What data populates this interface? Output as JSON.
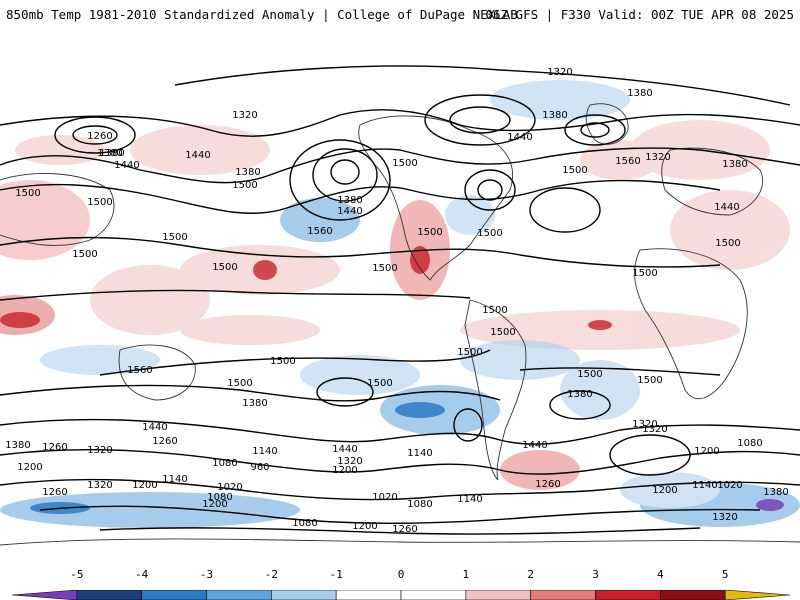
{
  "header": {
    "title": "850mb Temp 1981-2010 Standardized Anomaly | College of DuPage NEXLAB",
    "run_info": "06Z GFS | F330 Valid: 00Z TUE APR 08 2025"
  },
  "map": {
    "field": "850mb temperature standardized anomaly",
    "contour_field": "height contours",
    "contour_labels": [
      "1320",
      "1380",
      "1320",
      "1380",
      "1260",
      "1380",
      "1440",
      "1500",
      "1380",
      "1500",
      "1560",
      "1500",
      "1500",
      "1380",
      "1440",
      "1500",
      "1500",
      "1500",
      "1500",
      "1500",
      "1560",
      "1500",
      "1500",
      "1500",
      "1500",
      "1500",
      "1500",
      "1440",
      "1380",
      "1320",
      "1440",
      "1260",
      "1500",
      "1380",
      "1560",
      "1380",
      "1320",
      "1260",
      "1380",
      "1440",
      "1200",
      "1140",
      "1080",
      "960",
      "1140",
      "1200",
      "1320",
      "1440",
      "1200",
      "1260",
      "1320",
      "1080",
      "1140",
      "1200",
      "1020",
      "1080",
      "1140",
      "1020",
      "1080",
      "1200",
      "1260",
      "1320",
      "1200",
      "1140",
      "1020",
      "1260",
      "1320",
      "1200",
      "1440",
      "1320",
      "1380",
      "1080",
      "1500",
      "1500",
      "1500",
      "1500",
      "1500",
      "1440",
      "1380"
    ],
    "positive_color": "#d7303a",
    "negative_color": "#3d87c9"
  },
  "colorbar": {
    "ticks": [
      "-5",
      "-4",
      "-3",
      "-2",
      "-1",
      "0",
      "1",
      "2",
      "3",
      "4",
      "5"
    ],
    "bins": [
      {
        "from": -6,
        "to": -5,
        "color": "#7a3fb5"
      },
      {
        "from": -5,
        "to": -4,
        "color": "#1f3d7a"
      },
      {
        "from": -4,
        "to": -3,
        "color": "#2b7bc4"
      },
      {
        "from": -3,
        "to": -2,
        "color": "#5fa3db"
      },
      {
        "from": -2,
        "to": -1,
        "color": "#a9cdec"
      },
      {
        "from": -1,
        "to": 0,
        "color": "#ffffff"
      },
      {
        "from": 0,
        "to": 1,
        "color": "#ffffff"
      },
      {
        "from": 1,
        "to": 2,
        "color": "#f2c1c1"
      },
      {
        "from": 2,
        "to": 3,
        "color": "#e67b7b"
      },
      {
        "from": 3,
        "to": 4,
        "color": "#c8202a"
      },
      {
        "from": 4,
        "to": 5,
        "color": "#8b0f14"
      },
      {
        "from": 5,
        "to": 6,
        "color": "#e8b80f"
      }
    ]
  }
}
